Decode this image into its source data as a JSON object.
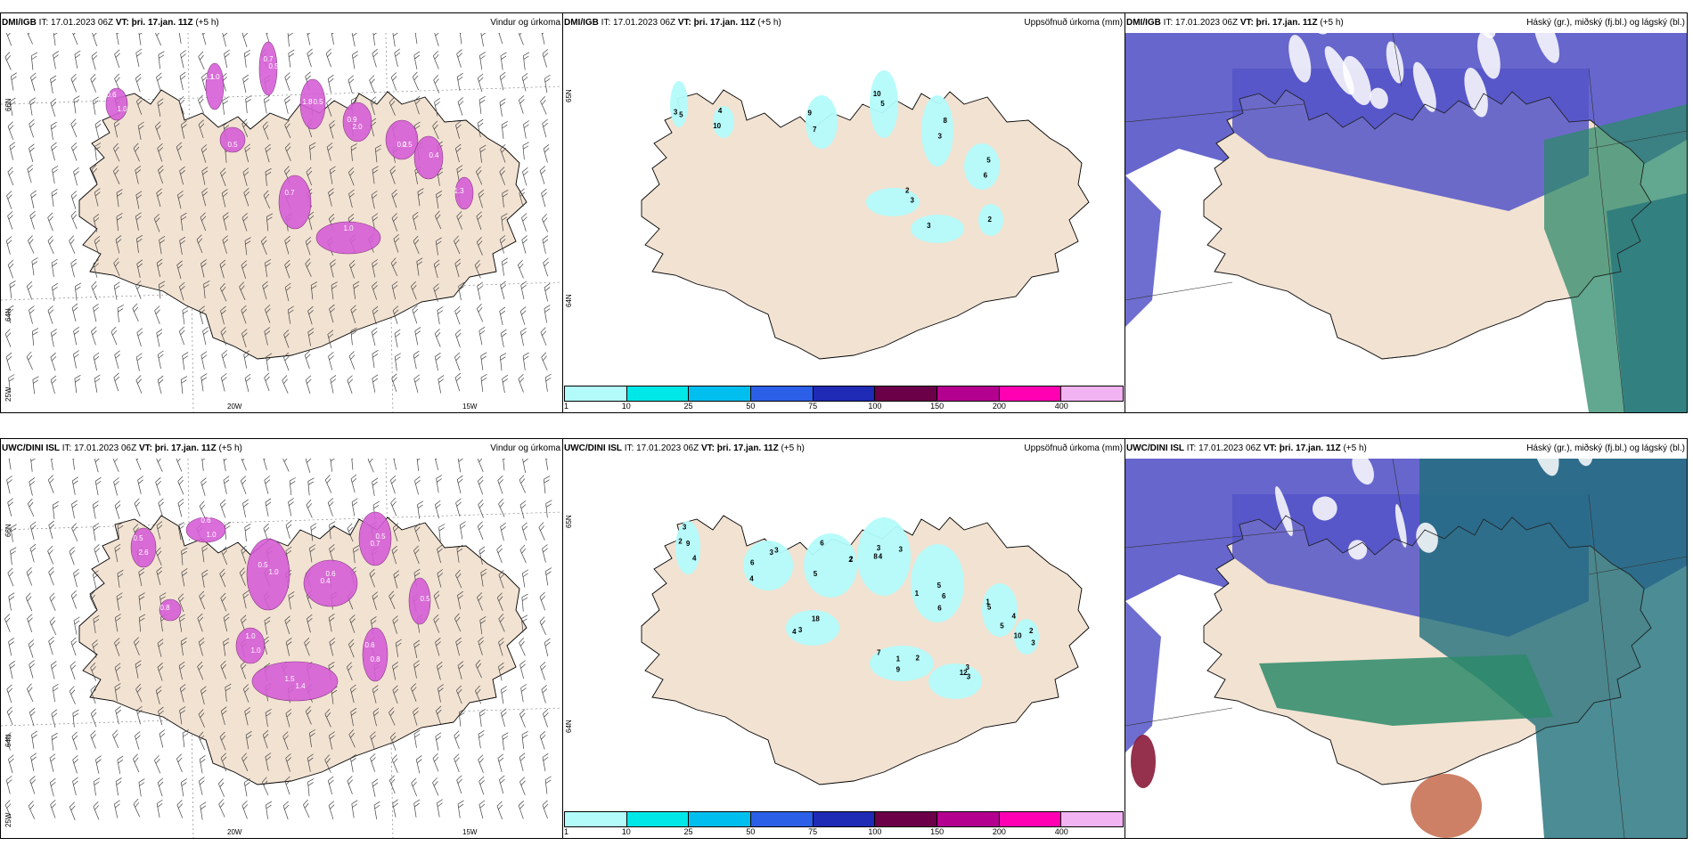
{
  "rows": [
    {
      "source": "DMI/IGB",
      "it_label": "IT:",
      "it_value": "17.01.2023 06Z",
      "vt_label": "VT:",
      "vt_value": "þri. 17.jan. 11Z",
      "lead": "(+5 h)"
    },
    {
      "source": "UWC/DINI ISL",
      "it_label": "IT:",
      "it_value": "17.01.2023 06Z",
      "vt_label": "VT:",
      "vt_value": "þri. 17.jan. 11Z",
      "lead": "(+5 h)"
    }
  ],
  "panel_titles": {
    "wind": "Vindur og úrkoma",
    "accum": "Uppsöfnuð úrkoma (mm)",
    "clouds": "Háský (gr.), miðský (fj.bl.) og lágský (bl.)"
  },
  "axis_labels": {
    "lat_66": "66N",
    "lat_64": "64N",
    "lat_65_right": "65N",
    "lat_64_right": "64N",
    "lon_20w": "20W",
    "lon_15w": "15W",
    "lon_25w": "25W"
  },
  "colorbar": {
    "labels": [
      "1",
      "10",
      "25",
      "50",
      "75",
      "100",
      "150",
      "200",
      "400"
    ],
    "colors": [
      "#b3fbfb",
      "#00e7e7",
      "#00bfef",
      "#2b5fe7",
      "#1f2ab5",
      "#6b0048",
      "#b3008f",
      "#ff00b3",
      "#f2b3f2"
    ]
  },
  "accum_labels": {
    "top": [
      "5",
      "4",
      "7",
      "10",
      "8",
      "6",
      "3",
      "3",
      "2",
      "3",
      "10",
      "9",
      "5",
      "3",
      "5",
      "2"
    ],
    "bottom": [
      "3",
      "3",
      "2",
      "4",
      "5",
      "5",
      "7",
      "12",
      "10",
      "18",
      "9",
      "4",
      "6",
      "8",
      "6",
      "5",
      "9",
      "3",
      "2",
      "3",
      "2",
      "6",
      "2",
      "3",
      "1",
      "1",
      "1",
      "3",
      "3",
      "4",
      "4",
      "3",
      "5",
      "3",
      "6",
      "4",
      "2"
    ]
  },
  "wind_labels": {
    "top": [
      "0.6",
      "1.0",
      "0.5",
      "1.8",
      "2.0",
      "0.5",
      "0.7",
      "1.0",
      "0.4",
      "1.3",
      "0.5",
      "1.0",
      "1.1",
      "0.7",
      "0.5",
      "0.9",
      "0.2"
    ],
    "bottom": [
      "0.5",
      "0.6",
      "1.0",
      "0.4",
      "0.7",
      "1.4",
      "0.6",
      "1.0",
      "0.5",
      "0.8",
      "2.6",
      "1.0",
      "0.5",
      "0.6",
      "0.5",
      "1.5",
      "0.8",
      "1.0"
    ]
  },
  "colors": {
    "land": "#f2e2d2",
    "sea": "#ffffff",
    "precip_magenta": "#d65fd6",
    "accum_cyan": "#b3fbfb",
    "cloud_high": "#5555c8",
    "cloud_mid": "#2d8a6a",
    "cloud_low": "#1f6f7a"
  }
}
